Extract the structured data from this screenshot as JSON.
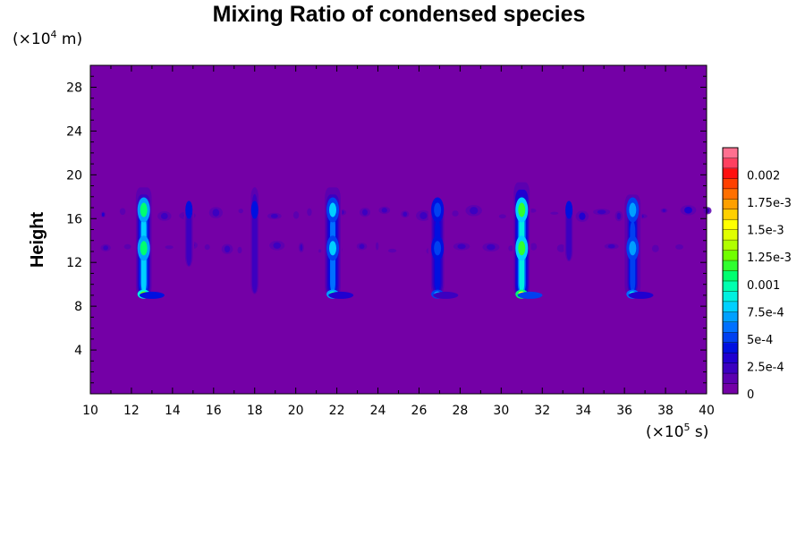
{
  "chart_data": {
    "type": "heatmap",
    "title": "Mixing Ratio of condensed species",
    "ylabel": "Height",
    "x_unit": {
      "prefix": "(×10",
      "exp": "5",
      "suffix": " s)"
    },
    "y_unit": {
      "prefix": "(×10",
      "exp": "4",
      "suffix": " m)"
    },
    "xlim": [
      10,
      40
    ],
    "ylim": [
      0,
      30
    ],
    "x_ticks": [
      10,
      12,
      14,
      16,
      18,
      20,
      22,
      24,
      26,
      28,
      30,
      32,
      34,
      36,
      38,
      40
    ],
    "x_tick_labels": [
      "10",
      "12",
      "14",
      "16",
      "18",
      "20",
      "22",
      "24",
      "26",
      "28",
      "30",
      "32",
      "34",
      "36",
      "38",
      "40"
    ],
    "y_ticks": [
      4,
      8,
      12,
      16,
      20,
      24,
      28
    ],
    "y_tick_labels": [
      "4",
      "8",
      "12",
      "16",
      "20",
      "24",
      "28"
    ],
    "colorbar": {
      "range": [
        0,
        0.00225
      ],
      "ticks": [
        0,
        0.00025,
        0.0005,
        0.00075,
        0.001,
        0.00125,
        0.0015,
        0.00175,
        0.002
      ],
      "tick_labels": [
        "0",
        "2.5e-4",
        "5e-4",
        "7.5e-4",
        "0.001",
        "1.25e-3",
        "1.5e-3",
        "1.75e-3",
        "0.002"
      ],
      "colors": [
        "#7400a6",
        "#5c00b0",
        "#3c00c0",
        "#2000d0",
        "#0010e0",
        "#0040f0",
        "#0070ff",
        "#00a0ff",
        "#00d0ff",
        "#00f0e0",
        "#00ffb0",
        "#00ff70",
        "#30ff30",
        "#70ff00",
        "#b0ff00",
        "#e0ff00",
        "#ffff00",
        "#ffd000",
        "#ffa000",
        "#ff7000",
        "#ff4000",
        "#ff1010",
        "#ff4060",
        "#ff7090"
      ]
    },
    "background_color": "#7400a6",
    "features": [
      {
        "x": 12.6,
        "y_bottom": 8.7,
        "y_top": 19.5,
        "peak": 0.0013,
        "strong": true
      },
      {
        "x": 14.8,
        "y_bottom": 11.5,
        "y_top": 17.5,
        "peak": 0.0004,
        "strong": false
      },
      {
        "x": 18.0,
        "y_bottom": 9.0,
        "y_top": 19.5,
        "peak": 0.0004,
        "strong": false
      },
      {
        "x": 21.8,
        "y_bottom": 8.7,
        "y_top": 19.5,
        "peak": 0.001,
        "strong": true
      },
      {
        "x": 26.9,
        "y_bottom": 8.8,
        "y_top": 19.0,
        "peak": 0.0007,
        "strong": true
      },
      {
        "x": 31.0,
        "y_bottom": 8.7,
        "y_top": 20.0,
        "peak": 0.0015,
        "strong": true
      },
      {
        "x": 33.3,
        "y_bottom": 12.0,
        "y_top": 17.8,
        "peak": 0.0004,
        "strong": false
      },
      {
        "x": 36.4,
        "y_bottom": 8.8,
        "y_top": 18.8,
        "peak": 0.0009,
        "strong": true
      }
    ],
    "bands": [
      {
        "y": 16.5,
        "x_from": 10.5,
        "x_to": 40,
        "peak": 0.0003
      },
      {
        "y": 13.3,
        "x_from": 10.5,
        "x_to": 38.5,
        "peak": 0.00025
      }
    ]
  }
}
